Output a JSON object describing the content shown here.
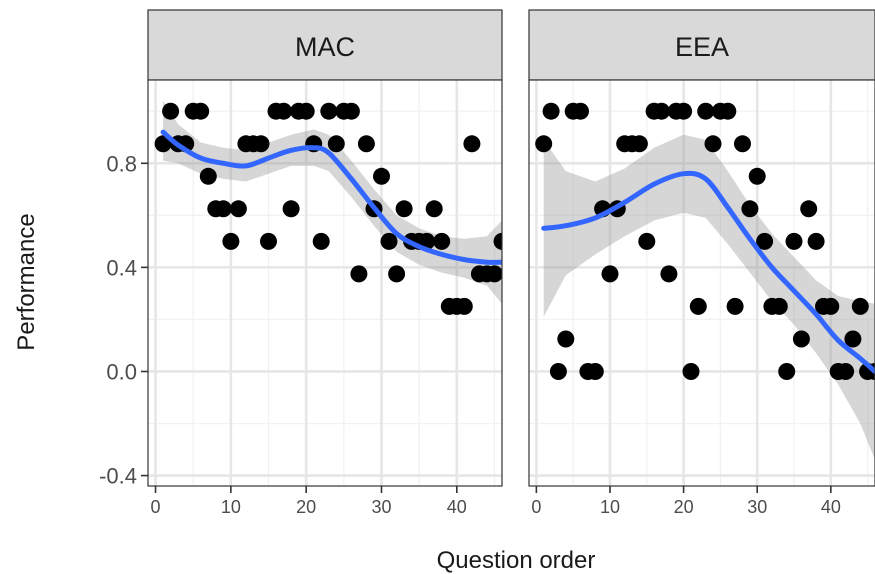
{
  "chart_data": {
    "type": "scatter",
    "xlabel": "Question order",
    "ylabel": "Performance",
    "xlim": [
      -1,
      46
    ],
    "ylim": [
      -0.44,
      1.12
    ],
    "x_ticks": [
      0,
      10,
      20,
      30,
      40
    ],
    "y_ticks": [
      -0.4,
      0.0,
      0.4,
      0.8
    ],
    "y_tick_labels": [
      "-0.4",
      "0.0",
      "0.4",
      "0.8"
    ],
    "grid": true,
    "panels": [
      {
        "title": "MAC",
        "points": [
          [
            1,
            0.875
          ],
          [
            2,
            1.0
          ],
          [
            3,
            0.875
          ],
          [
            4,
            0.875
          ],
          [
            5,
            1.0
          ],
          [
            6,
            1.0
          ],
          [
            7,
            0.75
          ],
          [
            8,
            0.625
          ],
          [
            9,
            0.625
          ],
          [
            10,
            0.5
          ],
          [
            11,
            0.625
          ],
          [
            12,
            0.875
          ],
          [
            13,
            0.875
          ],
          [
            14,
            0.875
          ],
          [
            15,
            0.5
          ],
          [
            16,
            1.0
          ],
          [
            17,
            1.0
          ],
          [
            18,
            0.625
          ],
          [
            19,
            1.0
          ],
          [
            20,
            1.0
          ],
          [
            21,
            0.875
          ],
          [
            22,
            0.5
          ],
          [
            23,
            1.0
          ],
          [
            24,
            0.875
          ],
          [
            25,
            1.0
          ],
          [
            26,
            1.0
          ],
          [
            27,
            0.375
          ],
          [
            28,
            0.875
          ],
          [
            29,
            0.625
          ],
          [
            30,
            0.75
          ],
          [
            31,
            0.5
          ],
          [
            32,
            0.375
          ],
          [
            33,
            0.625
          ],
          [
            34,
            0.5
          ],
          [
            35,
            0.5
          ],
          [
            36,
            0.5
          ],
          [
            37,
            0.625
          ],
          [
            38,
            0.5
          ],
          [
            39,
            0.25
          ],
          [
            40,
            0.25
          ],
          [
            41,
            0.25
          ],
          [
            42,
            0.875
          ],
          [
            43,
            0.375
          ],
          [
            44,
            0.375
          ],
          [
            45,
            0.375
          ],
          [
            46,
            0.5
          ]
        ],
        "smooth": {
          "x": [
            1,
            3,
            6,
            9,
            12,
            15,
            18,
            21,
            23,
            26,
            29,
            32,
            35,
            38,
            41,
            44,
            46
          ],
          "y": [
            0.92,
            0.87,
            0.82,
            0.8,
            0.79,
            0.82,
            0.85,
            0.86,
            0.84,
            0.74,
            0.63,
            0.53,
            0.48,
            0.45,
            0.43,
            0.42,
            0.42
          ],
          "lower": [
            0.81,
            0.8,
            0.76,
            0.74,
            0.73,
            0.76,
            0.79,
            0.79,
            0.77,
            0.67,
            0.56,
            0.46,
            0.41,
            0.38,
            0.36,
            0.33,
            0.26
          ],
          "upper": [
            1.04,
            0.95,
            0.88,
            0.86,
            0.85,
            0.88,
            0.91,
            0.93,
            0.91,
            0.81,
            0.7,
            0.6,
            0.55,
            0.52,
            0.51,
            0.52,
            0.58
          ]
        }
      },
      {
        "title": "EEA",
        "points": [
          [
            1,
            0.875
          ],
          [
            2,
            1.0
          ],
          [
            3,
            0.0
          ],
          [
            4,
            0.125
          ],
          [
            5,
            1.0
          ],
          [
            6,
            1.0
          ],
          [
            7,
            0.0
          ],
          [
            8,
            0.0
          ],
          [
            9,
            0.625
          ],
          [
            10,
            0.375
          ],
          [
            11,
            0.625
          ],
          [
            12,
            0.875
          ],
          [
            13,
            0.875
          ],
          [
            14,
            0.875
          ],
          [
            15,
            0.5
          ],
          [
            16,
            1.0
          ],
          [
            17,
            1.0
          ],
          [
            18,
            0.375
          ],
          [
            19,
            1.0
          ],
          [
            20,
            1.0
          ],
          [
            21,
            0.0
          ],
          [
            22,
            0.25
          ],
          [
            23,
            1.0
          ],
          [
            24,
            0.875
          ],
          [
            25,
            1.0
          ],
          [
            26,
            1.0
          ],
          [
            27,
            0.25
          ],
          [
            28,
            0.875
          ],
          [
            29,
            0.625
          ],
          [
            30,
            0.75
          ],
          [
            31,
            0.5
          ],
          [
            32,
            0.25
          ],
          [
            33,
            0.25
          ],
          [
            34,
            0.0
          ],
          [
            35,
            0.5
          ],
          [
            36,
            0.125
          ],
          [
            37,
            0.625
          ],
          [
            38,
            0.5
          ],
          [
            39,
            0.25
          ],
          [
            40,
            0.25
          ],
          [
            41,
            0.0
          ],
          [
            42,
            0.0
          ],
          [
            43,
            0.125
          ],
          [
            44,
            0.25
          ],
          [
            45,
            0.0
          ],
          [
            46,
            0.0
          ]
        ],
        "smooth": {
          "x": [
            1,
            4,
            8,
            12,
            16,
            20,
            23,
            26,
            29,
            32,
            35,
            38,
            41,
            44,
            46
          ],
          "y": [
            0.55,
            0.56,
            0.59,
            0.65,
            0.72,
            0.76,
            0.74,
            0.63,
            0.51,
            0.4,
            0.31,
            0.22,
            0.12,
            0.05,
            0.0
          ],
          "lower": [
            0.21,
            0.37,
            0.45,
            0.52,
            0.58,
            0.61,
            0.59,
            0.49,
            0.38,
            0.27,
            0.18,
            0.07,
            -0.05,
            -0.2,
            -0.34
          ],
          "upper": [
            0.89,
            0.77,
            0.73,
            0.78,
            0.86,
            0.91,
            0.89,
            0.77,
            0.64,
            0.53,
            0.44,
            0.35,
            0.29,
            0.27,
            0.26
          ]
        }
      }
    ]
  }
}
